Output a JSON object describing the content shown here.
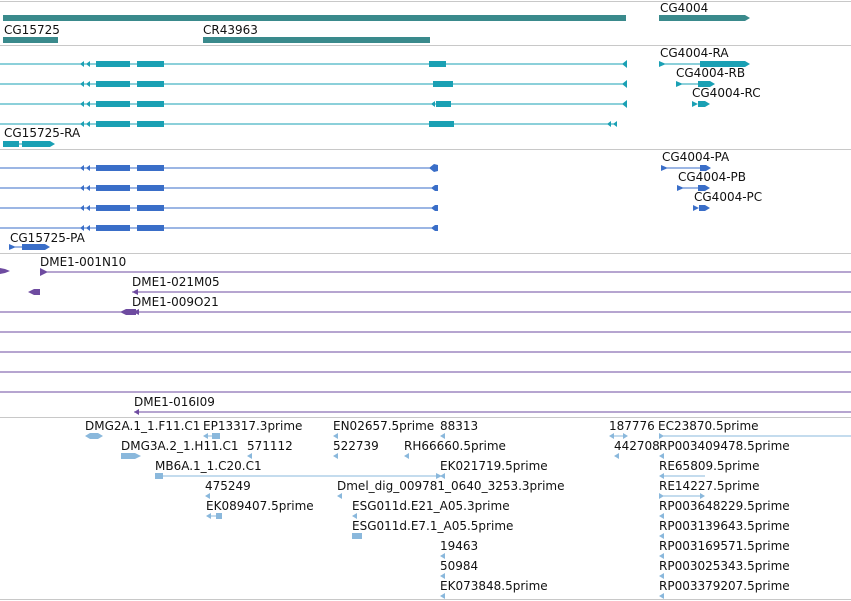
{
  "colors": {
    "gene": "#3a8a8c",
    "transcript": "#1aa0b4",
    "protein": "#3a6ec8",
    "clone": "#6e4ba0",
    "est": "#8ab8dc",
    "separator": "#c8c8c8"
  },
  "genes": [
    {
      "label": "CG15725"
    },
    {
      "label": "CR43963"
    },
    {
      "label": "CG4004"
    }
  ],
  "transcripts": [
    {
      "label": "CG15725-RA"
    },
    {
      "label": "CG4004-RA"
    },
    {
      "label": "CG4004-RB"
    },
    {
      "label": "CG4004-RC"
    }
  ],
  "proteins": [
    {
      "label": "CG15725-PA"
    },
    {
      "label": "CG4004-PA"
    },
    {
      "label": "CG4004-PB"
    },
    {
      "label": "CG4004-PC"
    }
  ],
  "clones": [
    {
      "label": "DME1-001N10"
    },
    {
      "label": "DME1-021M05"
    },
    {
      "label": "DME1-009O21"
    },
    {
      "label": "DME1-016I09"
    }
  ],
  "ests": [
    {
      "label": "DMG2A.1_1.F11.C1"
    },
    {
      "label": "EP13317.3prime"
    },
    {
      "label": "EN02657.5prime"
    },
    {
      "label": "88313"
    },
    {
      "label": "187776"
    },
    {
      "label": "EC23870.5prime"
    },
    {
      "label": "DMG3A.2_1.H11.C1"
    },
    {
      "label": "571112"
    },
    {
      "label": "522739"
    },
    {
      "label": "RH66660.5prime"
    },
    {
      "label": "442708"
    },
    {
      "label": "RP003409478.5prime"
    },
    {
      "label": "MB6A.1_1.C20.C1"
    },
    {
      "label": "EK021719.5prime"
    },
    {
      "label": "RE65809.5prime"
    },
    {
      "label": "475249"
    },
    {
      "label": "Dmel_dig_009781_0640_3253.3prime"
    },
    {
      "label": "RE14227.5prime"
    },
    {
      "label": "EK089407.5prime"
    },
    {
      "label": "ESG011d.E21_A05.3prime"
    },
    {
      "label": "RP003648229.5prime"
    },
    {
      "label": "ESG011d.E7.1_A05.5prime"
    },
    {
      "label": "RP003139643.5prime"
    },
    {
      "label": "19463"
    },
    {
      "label": "RP003169571.5prime"
    },
    {
      "label": "50984"
    },
    {
      "label": "RP003025343.5prime"
    },
    {
      "label": "EK073848.5prime"
    },
    {
      "label": "RP003379207.5prime"
    }
  ]
}
